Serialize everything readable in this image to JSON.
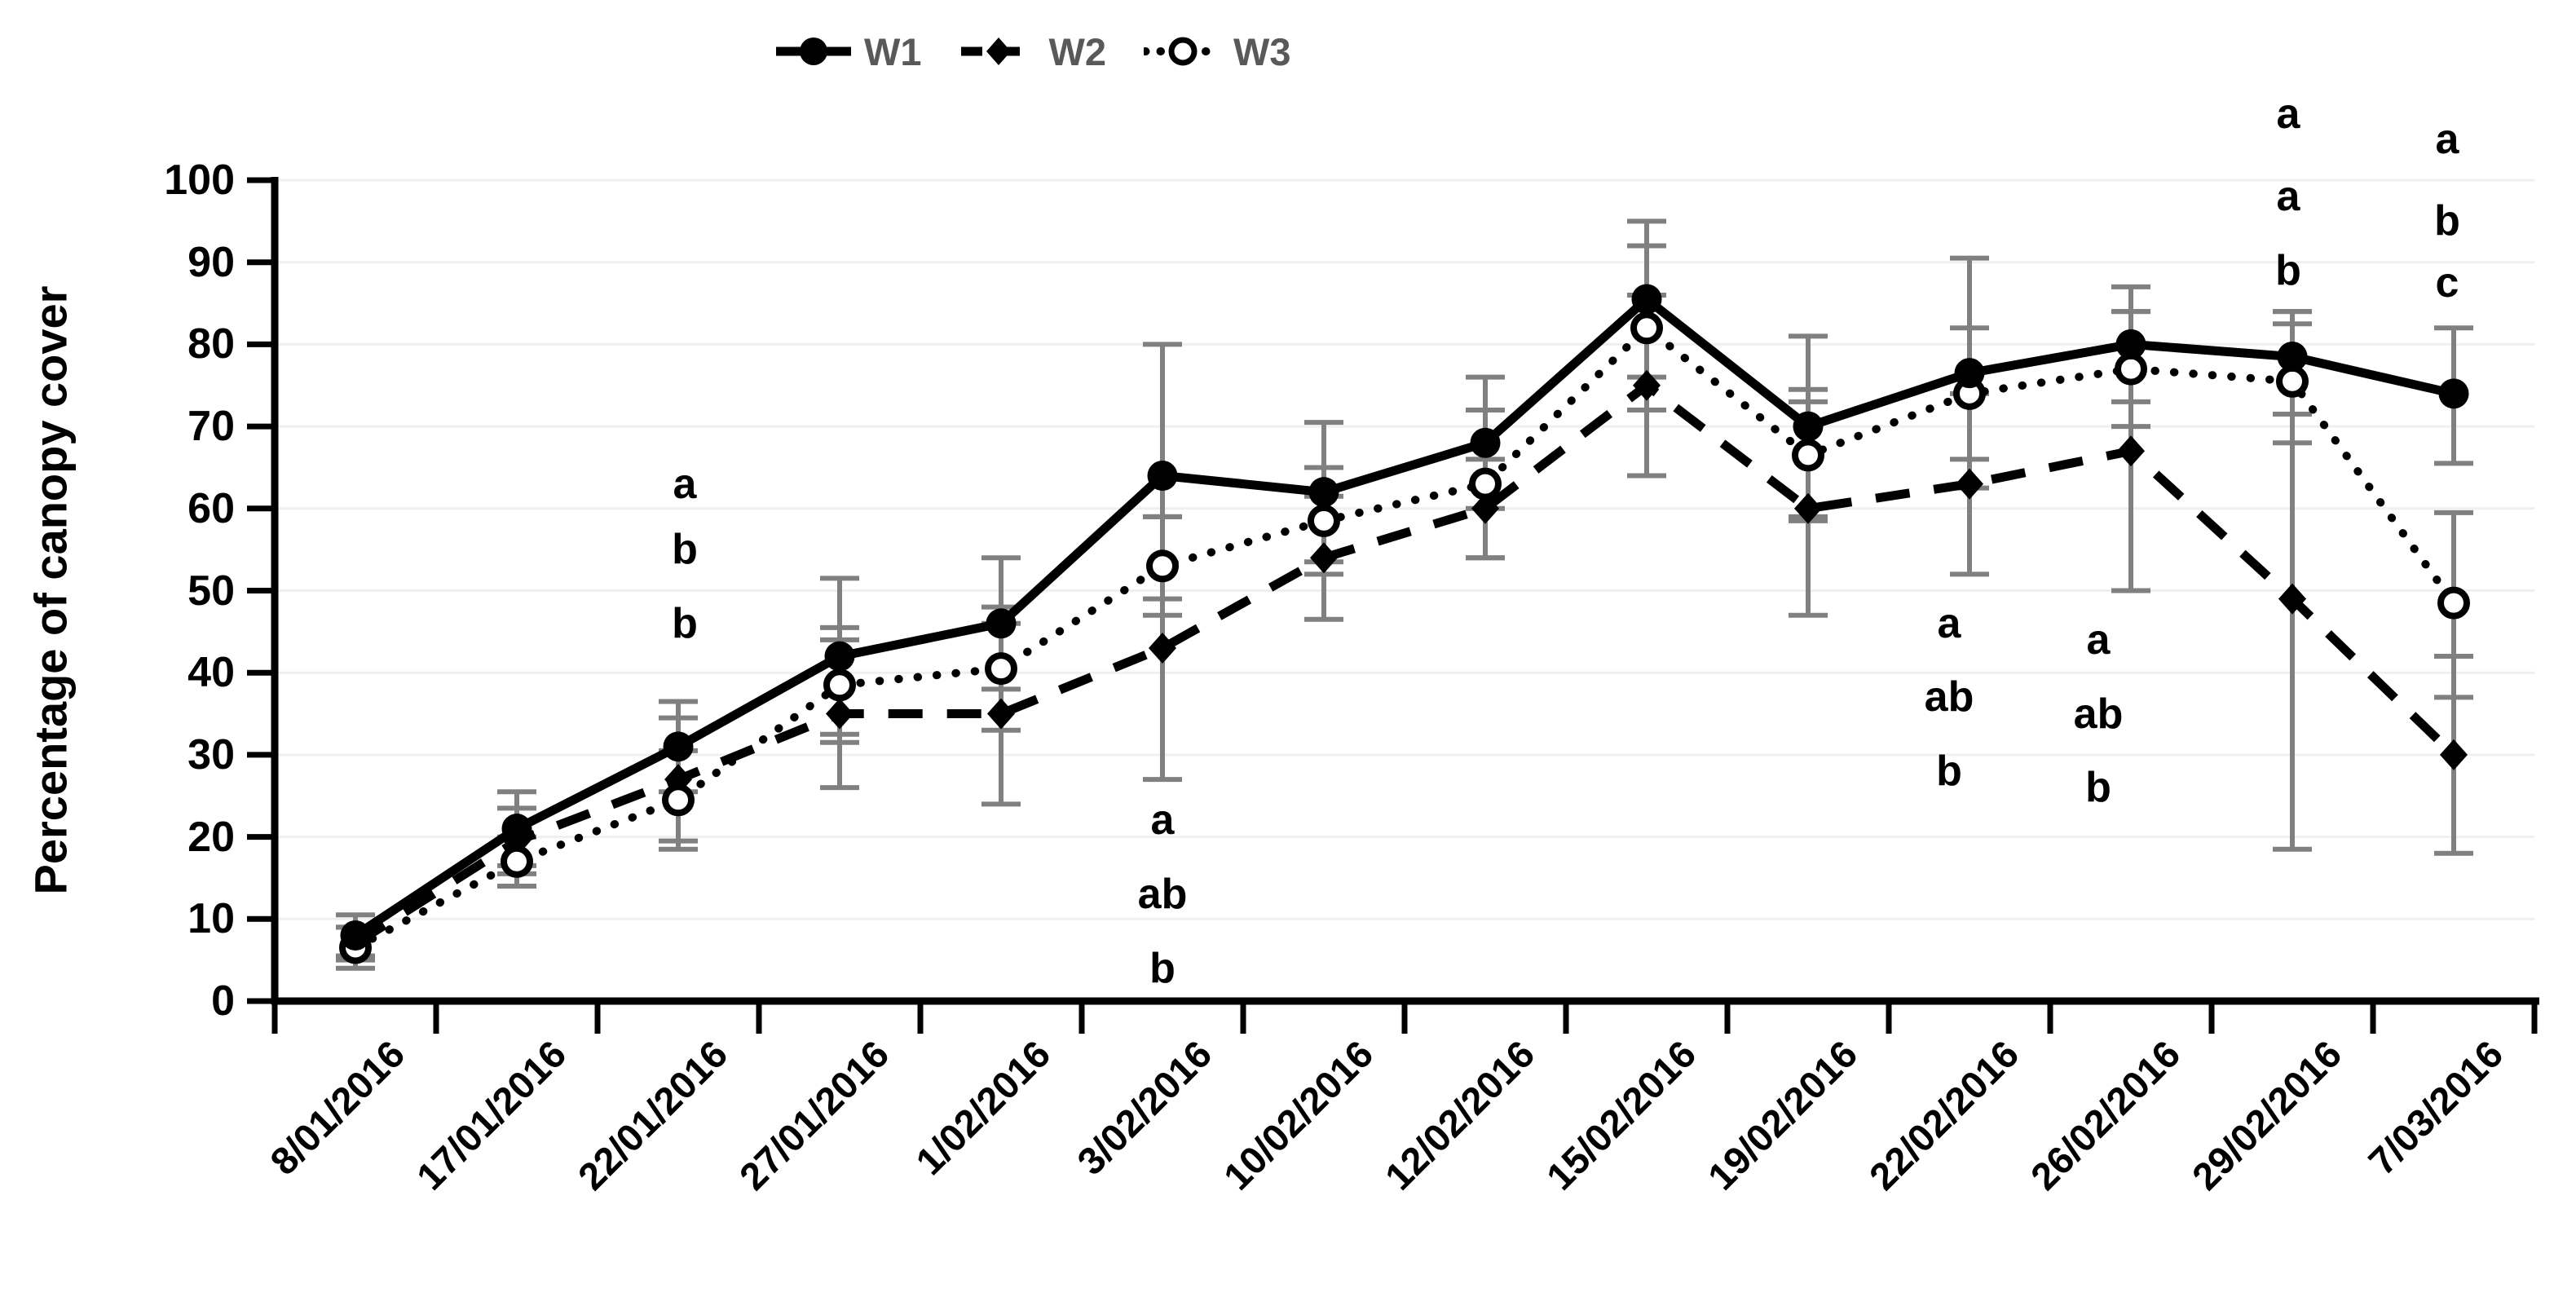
{
  "chart_data": {
    "type": "line",
    "title": "",
    "ylabel": "Percentage of canopy cover",
    "xlabel": "",
    "ylim": [
      0,
      100
    ],
    "ytick_step": 10,
    "yticks": [
      0,
      10,
      20,
      30,
      40,
      50,
      60,
      70,
      80,
      90,
      100
    ],
    "grid": "horizontal",
    "legend_position": "top",
    "categories": [
      "8/01/2016",
      "17/01/2016",
      "22/01/2016",
      "27/01/2016",
      "1/02/2016",
      "3/02/2016",
      "10/02/2016",
      "12/02/2016",
      "15/02/2016",
      "19/02/2016",
      "22/02/2016",
      "26/02/2016",
      "29/02/2016",
      "7/03/2016"
    ],
    "series": [
      {
        "name": "W1",
        "line_style": "solid",
        "marker": "filled-circle",
        "values": [
          8,
          21,
          31,
          42,
          46,
          64,
          62,
          68,
          85.5,
          70,
          76.5,
          80,
          78.5,
          74
        ],
        "err_up": [
          2.5,
          4.5,
          5.5,
          9.5,
          8,
          16,
          8.5,
          8,
          9.5,
          11,
          14,
          7,
          5.5,
          8
        ],
        "err_down": [
          2.5,
          4.5,
          5.5,
          9.5,
          8,
          15,
          8.5,
          8,
          9.5,
          11,
          14,
          7,
          7,
          8.5
        ]
      },
      {
        "name": "W2",
        "line_style": "dashed",
        "marker": "filled-diamond",
        "values": [
          7,
          19.5,
          27,
          35,
          35,
          43,
          54,
          60,
          75,
          60,
          63,
          67,
          49,
          30
        ],
        "err_up": [
          2,
          4,
          7.5,
          9,
          11,
          16,
          7.5,
          6,
          11,
          13,
          11,
          17,
          35,
          12
        ],
        "err_down": [
          2,
          4,
          7.5,
          9,
          11,
          16,
          7.5,
          6,
          11,
          13,
          11,
          17,
          30.5,
          12
        ]
      },
      {
        "name": "W3",
        "line_style": "dotted",
        "marker": "open-circle",
        "values": [
          6.5,
          17,
          24.5,
          38.5,
          40.5,
          53,
          58.5,
          63,
          82,
          66.5,
          74,
          77,
          75.5,
          48.5
        ],
        "err_up": [
          2.5,
          3,
          6,
          7,
          7.5,
          6,
          6.5,
          9,
          10,
          8,
          8,
          7,
          7,
          11
        ],
        "err_down": [
          2.5,
          3,
          6,
          7,
          7.5,
          6,
          6.5,
          9,
          10,
          8,
          8,
          7,
          7.5,
          11.5
        ]
      }
    ],
    "significance_letters": [
      {
        "category_index": 2,
        "letters": [
          "a",
          "b",
          "b"
        ],
        "values": [
          63,
          55,
          46
        ],
        "dx": 8
      },
      {
        "category_index": 5,
        "letters": [
          "a",
          "ab",
          "b"
        ],
        "values": [
          22,
          13,
          4
        ],
        "dx": 0
      },
      {
        "category_index": 10,
        "letters": [
          "a",
          "ab",
          "b"
        ],
        "values": [
          46,
          37,
          28
        ],
        "dx": -25
      },
      {
        "category_index": 11,
        "letters": [
          "a",
          "ab",
          "b"
        ],
        "values": [
          44,
          35,
          26
        ],
        "dx": -40
      },
      {
        "category_index": 12,
        "letters": [
          "a",
          "a",
          "b"
        ],
        "values": [
          108,
          98,
          89
        ],
        "dx": -5
      },
      {
        "category_index": 13,
        "letters": [
          "a",
          "b",
          "c"
        ],
        "values": [
          105,
          95,
          87.5
        ],
        "dx": -8
      }
    ],
    "colors": {
      "series": "#000000",
      "error_bar": "#808080",
      "legend_text": "#595959",
      "gridline": "#efefef",
      "axis": "#000000",
      "background": "#ffffff"
    }
  }
}
